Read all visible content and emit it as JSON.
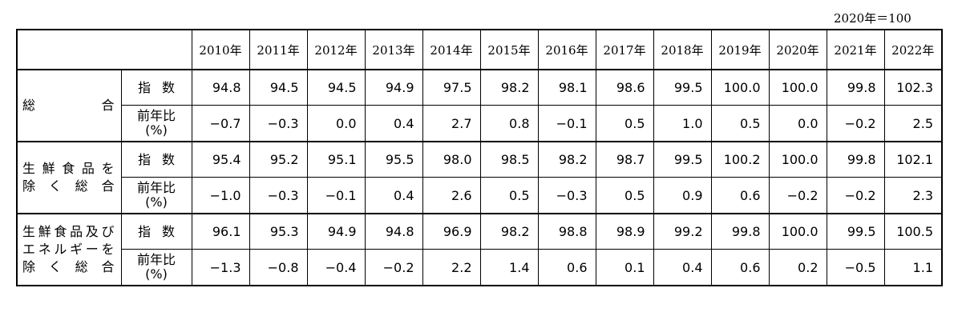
{
  "unit_note": "2020年＝100",
  "years": [
    "2010年",
    "2011年",
    "2012年",
    "2013年",
    "2014年",
    "2015年",
    "2016年",
    "2017年",
    "2018年",
    "2019年",
    "2020年",
    "2021年",
    "2022年"
  ],
  "sub_labels": {
    "index": "指数",
    "yoy_line1": "前年比",
    "yoy_line2": "(%)"
  },
  "groups": [
    {
      "label_lines": [
        "総　　　合"
      ],
      "index": [
        "94.8",
        "94.5",
        "94.5",
        "94.9",
        "97.5",
        "98.2",
        "98.1",
        "98.6",
        "99.5",
        "100.0",
        "100.0",
        "99.8",
        "102.3"
      ],
      "yoy": [
        "−0.7",
        "−0.3",
        "0.0",
        "0.4",
        "2.7",
        "0.8",
        "−0.1",
        "0.5",
        "1.0",
        "0.5",
        "0.0",
        "−0.2",
        "2.5"
      ]
    },
    {
      "label_lines": [
        "生鮮食品を",
        "除く総合"
      ],
      "index": [
        "95.4",
        "95.2",
        "95.1",
        "95.5",
        "98.0",
        "98.5",
        "98.2",
        "98.7",
        "99.5",
        "100.2",
        "100.0",
        "99.8",
        "102.1"
      ],
      "yoy": [
        "−1.0",
        "−0.3",
        "−0.1",
        "0.4",
        "2.6",
        "0.5",
        "−0.3",
        "0.5",
        "0.9",
        "0.6",
        "−0.2",
        "−0.2",
        "2.3"
      ]
    },
    {
      "label_lines": [
        "生鮮食品及び",
        "エネルギーを",
        "除く総合"
      ],
      "index": [
        "96.1",
        "95.3",
        "94.9",
        "94.8",
        "96.9",
        "98.2",
        "98.8",
        "98.9",
        "99.2",
        "99.8",
        "100.0",
        "99.5",
        "100.5"
      ],
      "yoy": [
        "−1.3",
        "−0.8",
        "−0.4",
        "−0.2",
        "2.2",
        "1.4",
        "0.6",
        "0.1",
        "0.4",
        "0.6",
        "0.2",
        "−0.5",
        "1.1"
      ]
    }
  ]
}
